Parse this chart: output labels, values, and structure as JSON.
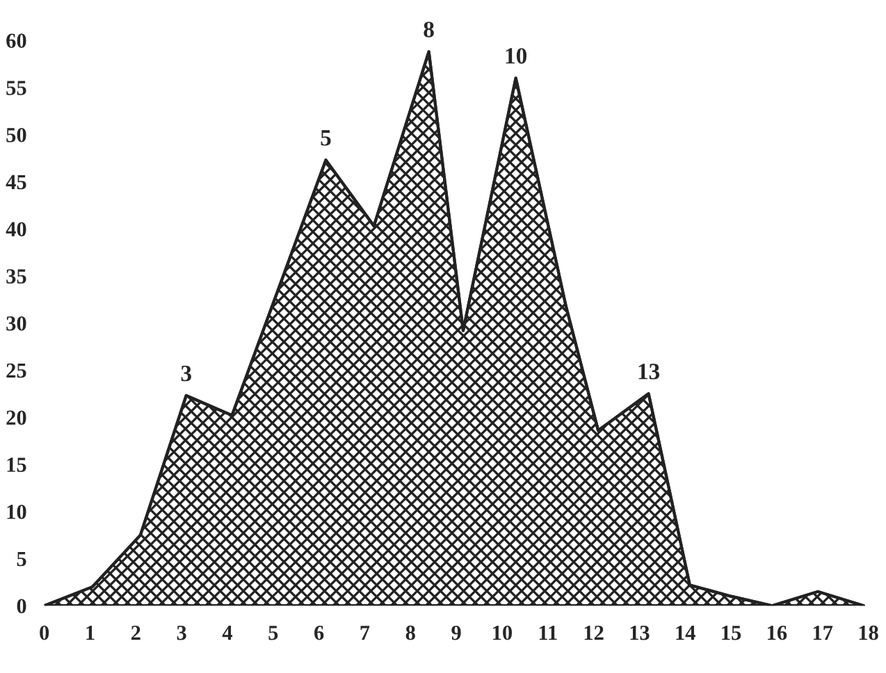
{
  "chart_data": {
    "type": "area",
    "x": [
      0,
      1.05,
      2.1,
      3.1,
      4.1,
      6.15,
      7.2,
      8.4,
      9.15,
      10.3,
      11.4,
      12.1,
      13.2,
      14.1,
      15.0,
      15.9,
      16.9,
      17.9
    ],
    "series": [
      {
        "color": "#222222",
        "values": [
          0,
          2,
          7.5,
          22.3,
          20.2,
          47.3,
          40.3,
          58.8,
          29.2,
          56,
          31.7,
          18.6,
          22.5,
          2.2,
          1,
          0,
          1.5,
          0
        ]
      }
    ],
    "xlim": [
      0,
      18
    ],
    "xticks": [
      0,
      1,
      2,
      3,
      4,
      5,
      6,
      7,
      8,
      9,
      10,
      11,
      12,
      13,
      14,
      15,
      16,
      17,
      18
    ],
    "ylim": [
      0,
      60
    ],
    "yticks": [
      0,
      5,
      10,
      15,
      20,
      25,
      30,
      35,
      40,
      45,
      50,
      55,
      60
    ],
    "annotations": [
      {
        "text": "3",
        "x": 3.1,
        "y": 22.3
      },
      {
        "text": "5",
        "x": 6.15,
        "y": 47.3
      },
      {
        "text": "8",
        "x": 8.4,
        "y": 58.8
      },
      {
        "text": "10",
        "x": 10.3,
        "y": 56
      },
      {
        "text": "13",
        "x": 13.2,
        "y": 22.5
      }
    ]
  }
}
